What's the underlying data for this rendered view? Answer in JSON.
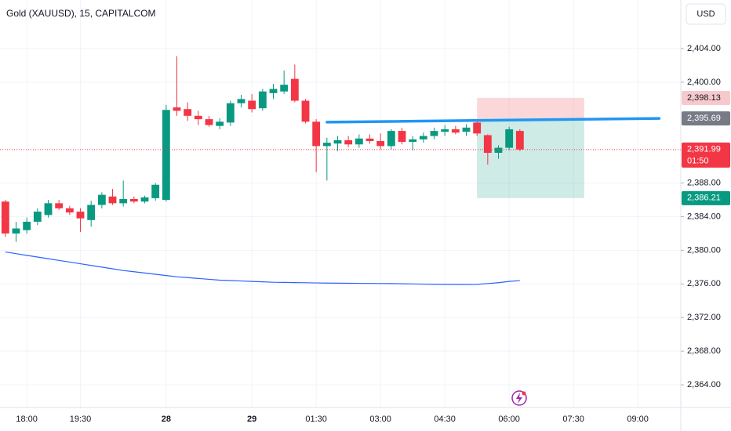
{
  "chart_data": {
    "type": "candlestick",
    "title": "Gold (XAUUSD), 15, CAPITALCOM",
    "currency": "USD",
    "categories": [
      null,
      null,
      "18:00",
      null,
      null,
      null,
      null,
      "19:30",
      null,
      null,
      null,
      null,
      null,
      null,
      null,
      "28",
      null,
      null,
      null,
      null,
      null,
      null,
      null,
      "29",
      null,
      null,
      null,
      null,
      null,
      "01:30",
      null,
      null,
      null,
      null,
      null,
      "03:00",
      null,
      null,
      null,
      null,
      null,
      "04:30",
      null,
      null,
      null,
      null,
      null,
      "06:00",
      null,
      null,
      null,
      null,
      null,
      "07:30",
      null,
      null,
      null,
      null,
      null,
      "09:00",
      null,
      null,
      null
    ],
    "open": [
      2385.8,
      2382.0,
      2382.4,
      2383.4,
      2384.2,
      2385.6,
      2385.0,
      2384.6,
      2383.6,
      2385.4,
      2386.4,
      2385.6,
      2386.1,
      2385.8,
      2386.2,
      2386.0,
      2397.0,
      2396.8,
      2396.0,
      2395.6,
      2394.8,
      2395.2,
      2397.5,
      2397.8,
      2396.9,
      2398.7,
      2398.9,
      2400.4,
      2397.8,
      2395.3,
      2392.4,
      2392.7,
      2393.1,
      2392.6,
      2393.3,
      2393.0,
      2392.4,
      2394.2,
      2392.9,
      2393.2,
      2393.6,
      2394.1,
      2394.4,
      2394.1,
      2395.2,
      2393.7,
      2391.6,
      2392.2,
      2394.2,
      null,
      null,
      null,
      null,
      null,
      null,
      null,
      null,
      null,
      null,
      null,
      null,
      null,
      null
    ],
    "high": [
      2386.0,
      2383.4,
      2383.9,
      2385.0,
      2386.0,
      2386.0,
      2385.3,
      2385.0,
      2385.9,
      2386.9,
      2387.3,
      2388.3,
      2386.4,
      2386.5,
      2388.0,
      2397.3,
      2403.1,
      2397.6,
      2396.6,
      2396.0,
      2395.7,
      2397.8,
      2398.5,
      2398.6,
      2399.2,
      2399.8,
      2401.4,
      2402.1,
      2398.0,
      2395.6,
      2393.4,
      2393.6,
      2393.6,
      2393.8,
      2393.8,
      2393.9,
      2394.4,
      2394.6,
      2393.6,
      2394.0,
      2394.6,
      2394.9,
      2394.8,
      2395.0,
      2395.6,
      2393.8,
      2392.5,
      2394.7,
      2394.4,
      null,
      null,
      null,
      null,
      null,
      null,
      null,
      null,
      null,
      null,
      null,
      null,
      null,
      null
    ],
    "low": [
      2381.6,
      2381.0,
      2382.0,
      2383.0,
      2383.9,
      2384.8,
      2384.2,
      2382.2,
      2382.8,
      2385.0,
      2385.4,
      2385.2,
      2385.6,
      2385.6,
      2385.9,
      2385.8,
      2396.0,
      2395.4,
      2394.9,
      2394.7,
      2394.4,
      2394.8,
      2397.0,
      2396.4,
      2396.6,
      2398.0,
      2398.6,
      2397.6,
      2395.1,
      2389.3,
      2388.3,
      2391.8,
      2392.3,
      2392.2,
      2392.7,
      2392.0,
      2392.0,
      2392.6,
      2391.9,
      2392.8,
      2393.2,
      2393.6,
      2393.8,
      2393.6,
      2393.6,
      2390.2,
      2390.9,
      2391.9,
      2391.8,
      null,
      null,
      null,
      null,
      null,
      null,
      null,
      null,
      null,
      null,
      null,
      null,
      null,
      null
    ],
    "close": [
      2382.0,
      2382.6,
      2383.4,
      2384.6,
      2385.6,
      2385.0,
      2384.5,
      2383.8,
      2385.4,
      2386.6,
      2385.6,
      2386.1,
      2385.8,
      2386.3,
      2387.8,
      2396.7,
      2396.6,
      2396.0,
      2395.6,
      2394.9,
      2395.3,
      2397.5,
      2398.0,
      2396.8,
      2398.9,
      2399.2,
      2399.7,
      2397.8,
      2395.3,
      2392.4,
      2392.8,
      2393.1,
      2392.6,
      2393.3,
      2393.0,
      2392.4,
      2394.2,
      2392.9,
      2393.2,
      2393.6,
      2394.2,
      2394.4,
      2394.0,
      2394.6,
      2393.9,
      2391.6,
      2392.2,
      2394.4,
      2391.99,
      null,
      null,
      null,
      null,
      null,
      null,
      null,
      null,
      null,
      null,
      null,
      null,
      null,
      null
    ],
    "ma_values": [
      2379.8,
      2379.6,
      2379.4,
      2379.2,
      2379.0,
      2378.8,
      2378.6,
      2378.4,
      2378.2,
      2378.0,
      2377.8,
      2377.6,
      2377.45,
      2377.3,
      2377.15,
      2377.0,
      2376.85,
      2376.75,
      2376.65,
      2376.55,
      2376.45,
      2376.4,
      2376.35,
      2376.3,
      2376.25,
      2376.2,
      2376.18,
      2376.16,
      2376.14,
      2376.12,
      2376.1,
      2376.09,
      2376.08,
      2376.07,
      2376.06,
      2376.05,
      2376.04,
      2376.02,
      2376.0,
      2375.98,
      2375.96,
      2375.95,
      2375.94,
      2375.94,
      2375.95,
      2376.05,
      2376.15,
      2376.3,
      2376.4,
      null,
      null,
      null,
      null,
      null,
      null,
      null,
      null,
      null,
      null,
      null,
      null,
      null,
      null
    ],
    "up_color": "#089981",
    "down_color": "#f23645",
    "ma_color": "#2962ff",
    "ylim": [
      2361.3,
      2409.78
    ],
    "yticks": [
      {
        "value": 2364,
        "label": "2,364.00"
      },
      {
        "value": 2368,
        "label": "2,368.00"
      },
      {
        "value": 2372,
        "label": "2,372.00"
      },
      {
        "value": 2376,
        "label": "2,376.00"
      },
      {
        "value": 2380,
        "label": "2,380.00"
      },
      {
        "value": 2384,
        "label": "2,384.00"
      },
      {
        "value": 2388,
        "label": "2,388.00"
      },
      {
        "value": 2400,
        "label": "2,400.00"
      },
      {
        "value": 2404,
        "label": "2,404.00"
      }
    ],
    "grid": true,
    "trend_line": {
      "start": 30,
      "end": 61,
      "start_value": 2395.25,
      "end_value": 2395.69,
      "color": "#2196f3"
    },
    "position": {
      "start": 44,
      "end": 54,
      "stop": {
        "value": 2398.13,
        "label": "2,398.13"
      },
      "entry": {
        "value": 2395.69,
        "label": "2,395.69"
      },
      "target": {
        "value": 2386.21,
        "label": "2,386.21"
      }
    },
    "last_price": {
      "value": 2391.99,
      "label": "2,391.99",
      "countdown": "01:50"
    }
  }
}
